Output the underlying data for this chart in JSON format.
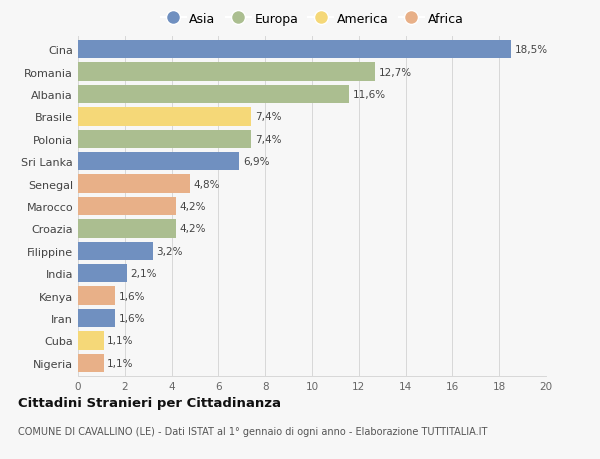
{
  "countries": [
    "Cina",
    "Romania",
    "Albania",
    "Brasile",
    "Polonia",
    "Sri Lanka",
    "Senegal",
    "Marocco",
    "Croazia",
    "Filippine",
    "India",
    "Kenya",
    "Iran",
    "Cuba",
    "Nigeria"
  ],
  "values": [
    18.5,
    12.7,
    11.6,
    7.4,
    7.4,
    6.9,
    4.8,
    4.2,
    4.2,
    3.2,
    2.1,
    1.6,
    1.6,
    1.1,
    1.1
  ],
  "labels": [
    "18,5%",
    "12,7%",
    "11,6%",
    "7,4%",
    "7,4%",
    "6,9%",
    "4,8%",
    "4,2%",
    "4,2%",
    "3,2%",
    "2,1%",
    "1,6%",
    "1,6%",
    "1,1%",
    "1,1%"
  ],
  "continents": [
    "Asia",
    "Europa",
    "Europa",
    "America",
    "Europa",
    "Asia",
    "Africa",
    "Africa",
    "Europa",
    "Asia",
    "Asia",
    "Africa",
    "Asia",
    "America",
    "Africa"
  ],
  "colors": {
    "Asia": "#7090c0",
    "Europa": "#abbe90",
    "America": "#f5d878",
    "Africa": "#e8b088"
  },
  "bg_color": "#f7f7f7",
  "title": "Cittadini Stranieri per Cittadinanza",
  "subtitle": "COMUNE DI CAVALLINO (LE) - Dati ISTAT al 1° gennaio di ogni anno - Elaborazione TUTTITALIA.IT",
  "xlim": [
    0,
    20
  ],
  "xticks": [
    0,
    2,
    4,
    6,
    8,
    10,
    12,
    14,
    16,
    18,
    20
  ],
  "grid_color": "#d8d8d8"
}
